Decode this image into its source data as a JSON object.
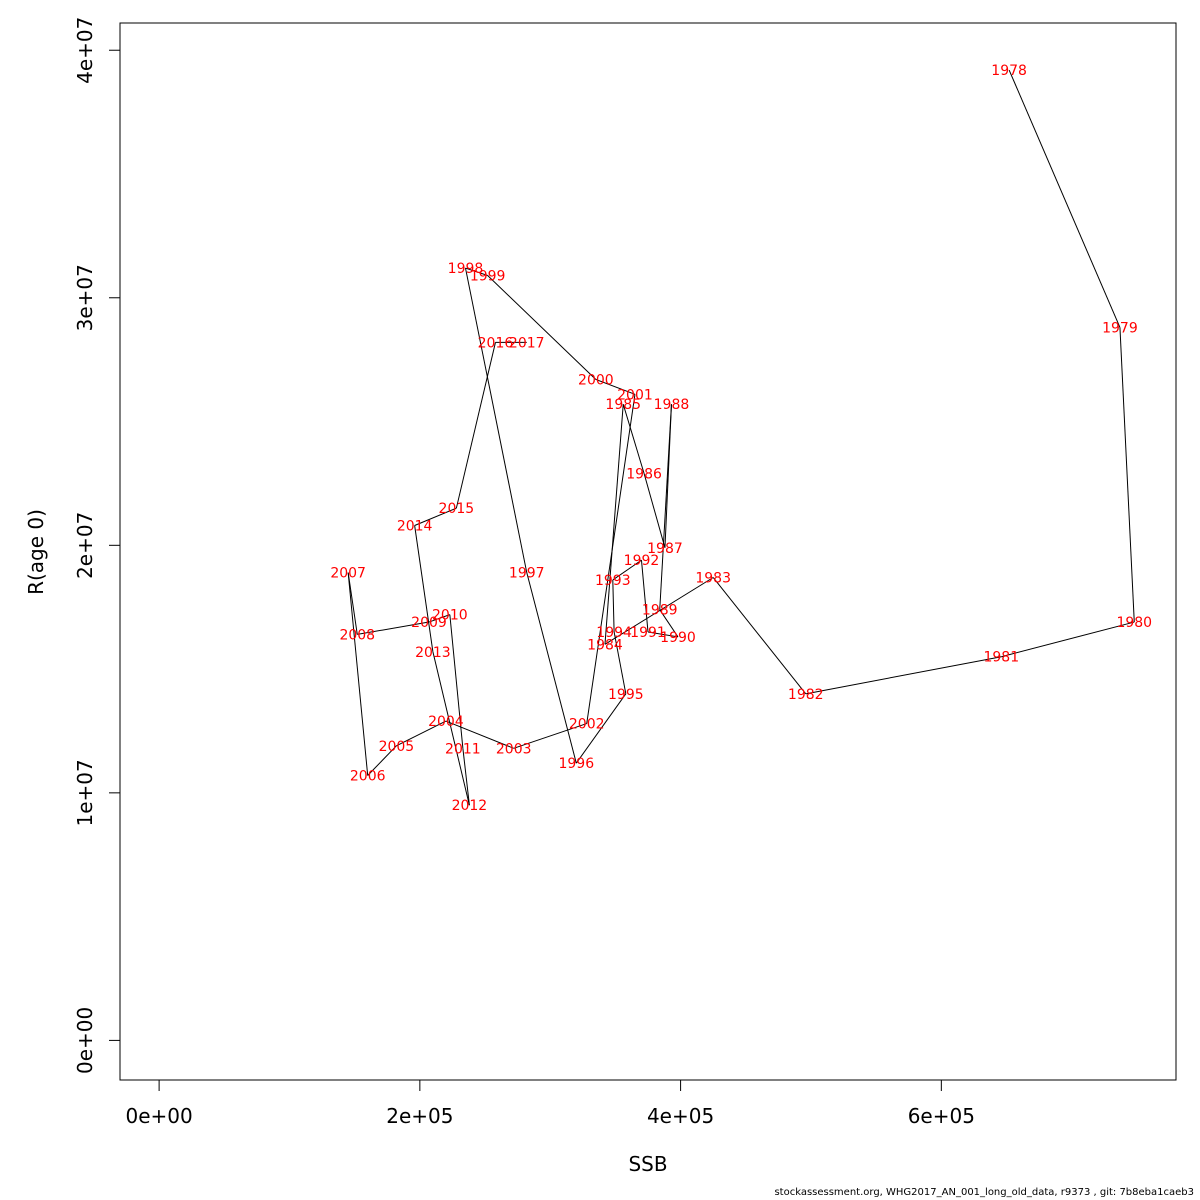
{
  "chart_data": {
    "type": "line",
    "xlabel": "SSB",
    "ylabel": "R(age 0)",
    "xlim": [
      -30000,
      780000
    ],
    "ylim": [
      -1600000,
      41100000
    ],
    "x_ticks": [
      {
        "value": 0,
        "label": "0e+00"
      },
      {
        "value": 200000,
        "label": "2e+05"
      },
      {
        "value": 400000,
        "label": "4e+05"
      },
      {
        "value": 600000,
        "label": "6e+05"
      }
    ],
    "y_ticks": [
      {
        "value": 0,
        "label": "0e+00"
      },
      {
        "value": 10000000,
        "label": "1e+07"
      },
      {
        "value": 20000000,
        "label": "2e+07"
      },
      {
        "value": 30000000,
        "label": "3e+07"
      },
      {
        "value": 40000000,
        "label": "4e+07"
      }
    ],
    "line_color": "#000000",
    "label_color": "#ff0000",
    "points": [
      {
        "label": "1978",
        "x": 652000,
        "y": 39200000
      },
      {
        "label": "1979",
        "x": 737000,
        "y": 28800000
      },
      {
        "label": "1980",
        "x": 748000,
        "y": 16900000
      },
      {
        "label": "1981",
        "x": 646000,
        "y": 15500000
      },
      {
        "label": "1982",
        "x": 496000,
        "y": 14000000
      },
      {
        "label": "1983",
        "x": 425000,
        "y": 18700000
      },
      {
        "label": "1984",
        "x": 342000,
        "y": 16000000
      },
      {
        "label": "1985",
        "x": 356000,
        "y": 25700000
      },
      {
        "label": "1986",
        "x": 372000,
        "y": 22900000
      },
      {
        "label": "1987",
        "x": 388000,
        "y": 19900000
      },
      {
        "label": "1988",
        "x": 393000,
        "y": 25700000
      },
      {
        "label": "1989",
        "x": 384000,
        "y": 17400000
      },
      {
        "label": "1990",
        "x": 398000,
        "y": 16300000
      },
      {
        "label": "1991",
        "x": 375000,
        "y": 16500000
      },
      {
        "label": "1992",
        "x": 370000,
        "y": 19400000
      },
      {
        "label": "1993",
        "x": 348000,
        "y": 18600000
      },
      {
        "label": "1994",
        "x": 349000,
        "y": 16500000
      },
      {
        "label": "1995",
        "x": 358000,
        "y": 14000000
      },
      {
        "label": "1996",
        "x": 320000,
        "y": 11200000
      },
      {
        "label": "1997",
        "x": 282000,
        "y": 18900000
      },
      {
        "label": "1998",
        "x": 235000,
        "y": 31200000
      },
      {
        "label": "1999",
        "x": 252000,
        "y": 30900000
      },
      {
        "label": "2000",
        "x": 335000,
        "y": 26700000
      },
      {
        "label": "2001",
        "x": 365000,
        "y": 26100000
      },
      {
        "label": "2002",
        "x": 328000,
        "y": 12800000
      },
      {
        "label": "2003",
        "x": 272000,
        "y": 11800000
      },
      {
        "label": "2004",
        "x": 220000,
        "y": 12900000
      },
      {
        "label": "2005",
        "x": 182000,
        "y": 11900000
      },
      {
        "label": "2006",
        "x": 160000,
        "y": 10700000
      },
      {
        "label": "2007",
        "x": 145000,
        "y": 18900000
      },
      {
        "label": "2008",
        "x": 152000,
        "y": 16400000
      },
      {
        "label": "2009",
        "x": 207000,
        "y": 16900000
      },
      {
        "label": "2010",
        "x": 223000,
        "y": 17200000
      },
      {
        "label": "2011",
        "x": 233000,
        "y": 11800000
      },
      {
        "label": "2012",
        "x": 238000,
        "y": 9500000
      },
      {
        "label": "2013",
        "x": 210000,
        "y": 15700000
      },
      {
        "label": "2014",
        "x": 196000,
        "y": 20800000
      },
      {
        "label": "2015",
        "x": 228000,
        "y": 21500000
      },
      {
        "label": "2016",
        "x": 258000,
        "y": 28200000
      },
      {
        "label": "2017",
        "x": 282000,
        "y": 28200000
      }
    ]
  },
  "footer": "stockassessment.org, WHG2017_AN_001_long_old_data, r9373 , git: 7b8eba1caeb3"
}
